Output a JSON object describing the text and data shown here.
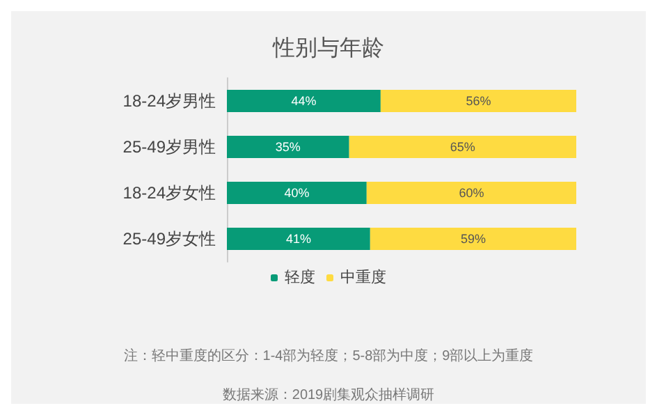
{
  "chart_data": {
    "type": "bar",
    "orientation": "horizontal",
    "stacked": true,
    "title": "性别与年龄",
    "categories": [
      "18-24岁男性",
      "25-49岁男性",
      "18-24岁女性",
      "25-49岁女性"
    ],
    "series": [
      {
        "name": "轻度",
        "color": "#079b77",
        "values": [
          44,
          35,
          40,
          41
        ],
        "value_labels": [
          "44%",
          "35%",
          "40%",
          "41%"
        ]
      },
      {
        "name": "中重度",
        "color": "#fedb41",
        "values": [
          56,
          65,
          60,
          59
        ],
        "value_labels": [
          "56%",
          "65%",
          "60%",
          "59%"
        ]
      }
    ],
    "legend": "bottom",
    "annotations": [
      "注：轻中重度的区分：1-4部为轻度；5-8部为中度；9部以上为重度",
      "数据来源：2019剧集观众抽样调研"
    ]
  }
}
